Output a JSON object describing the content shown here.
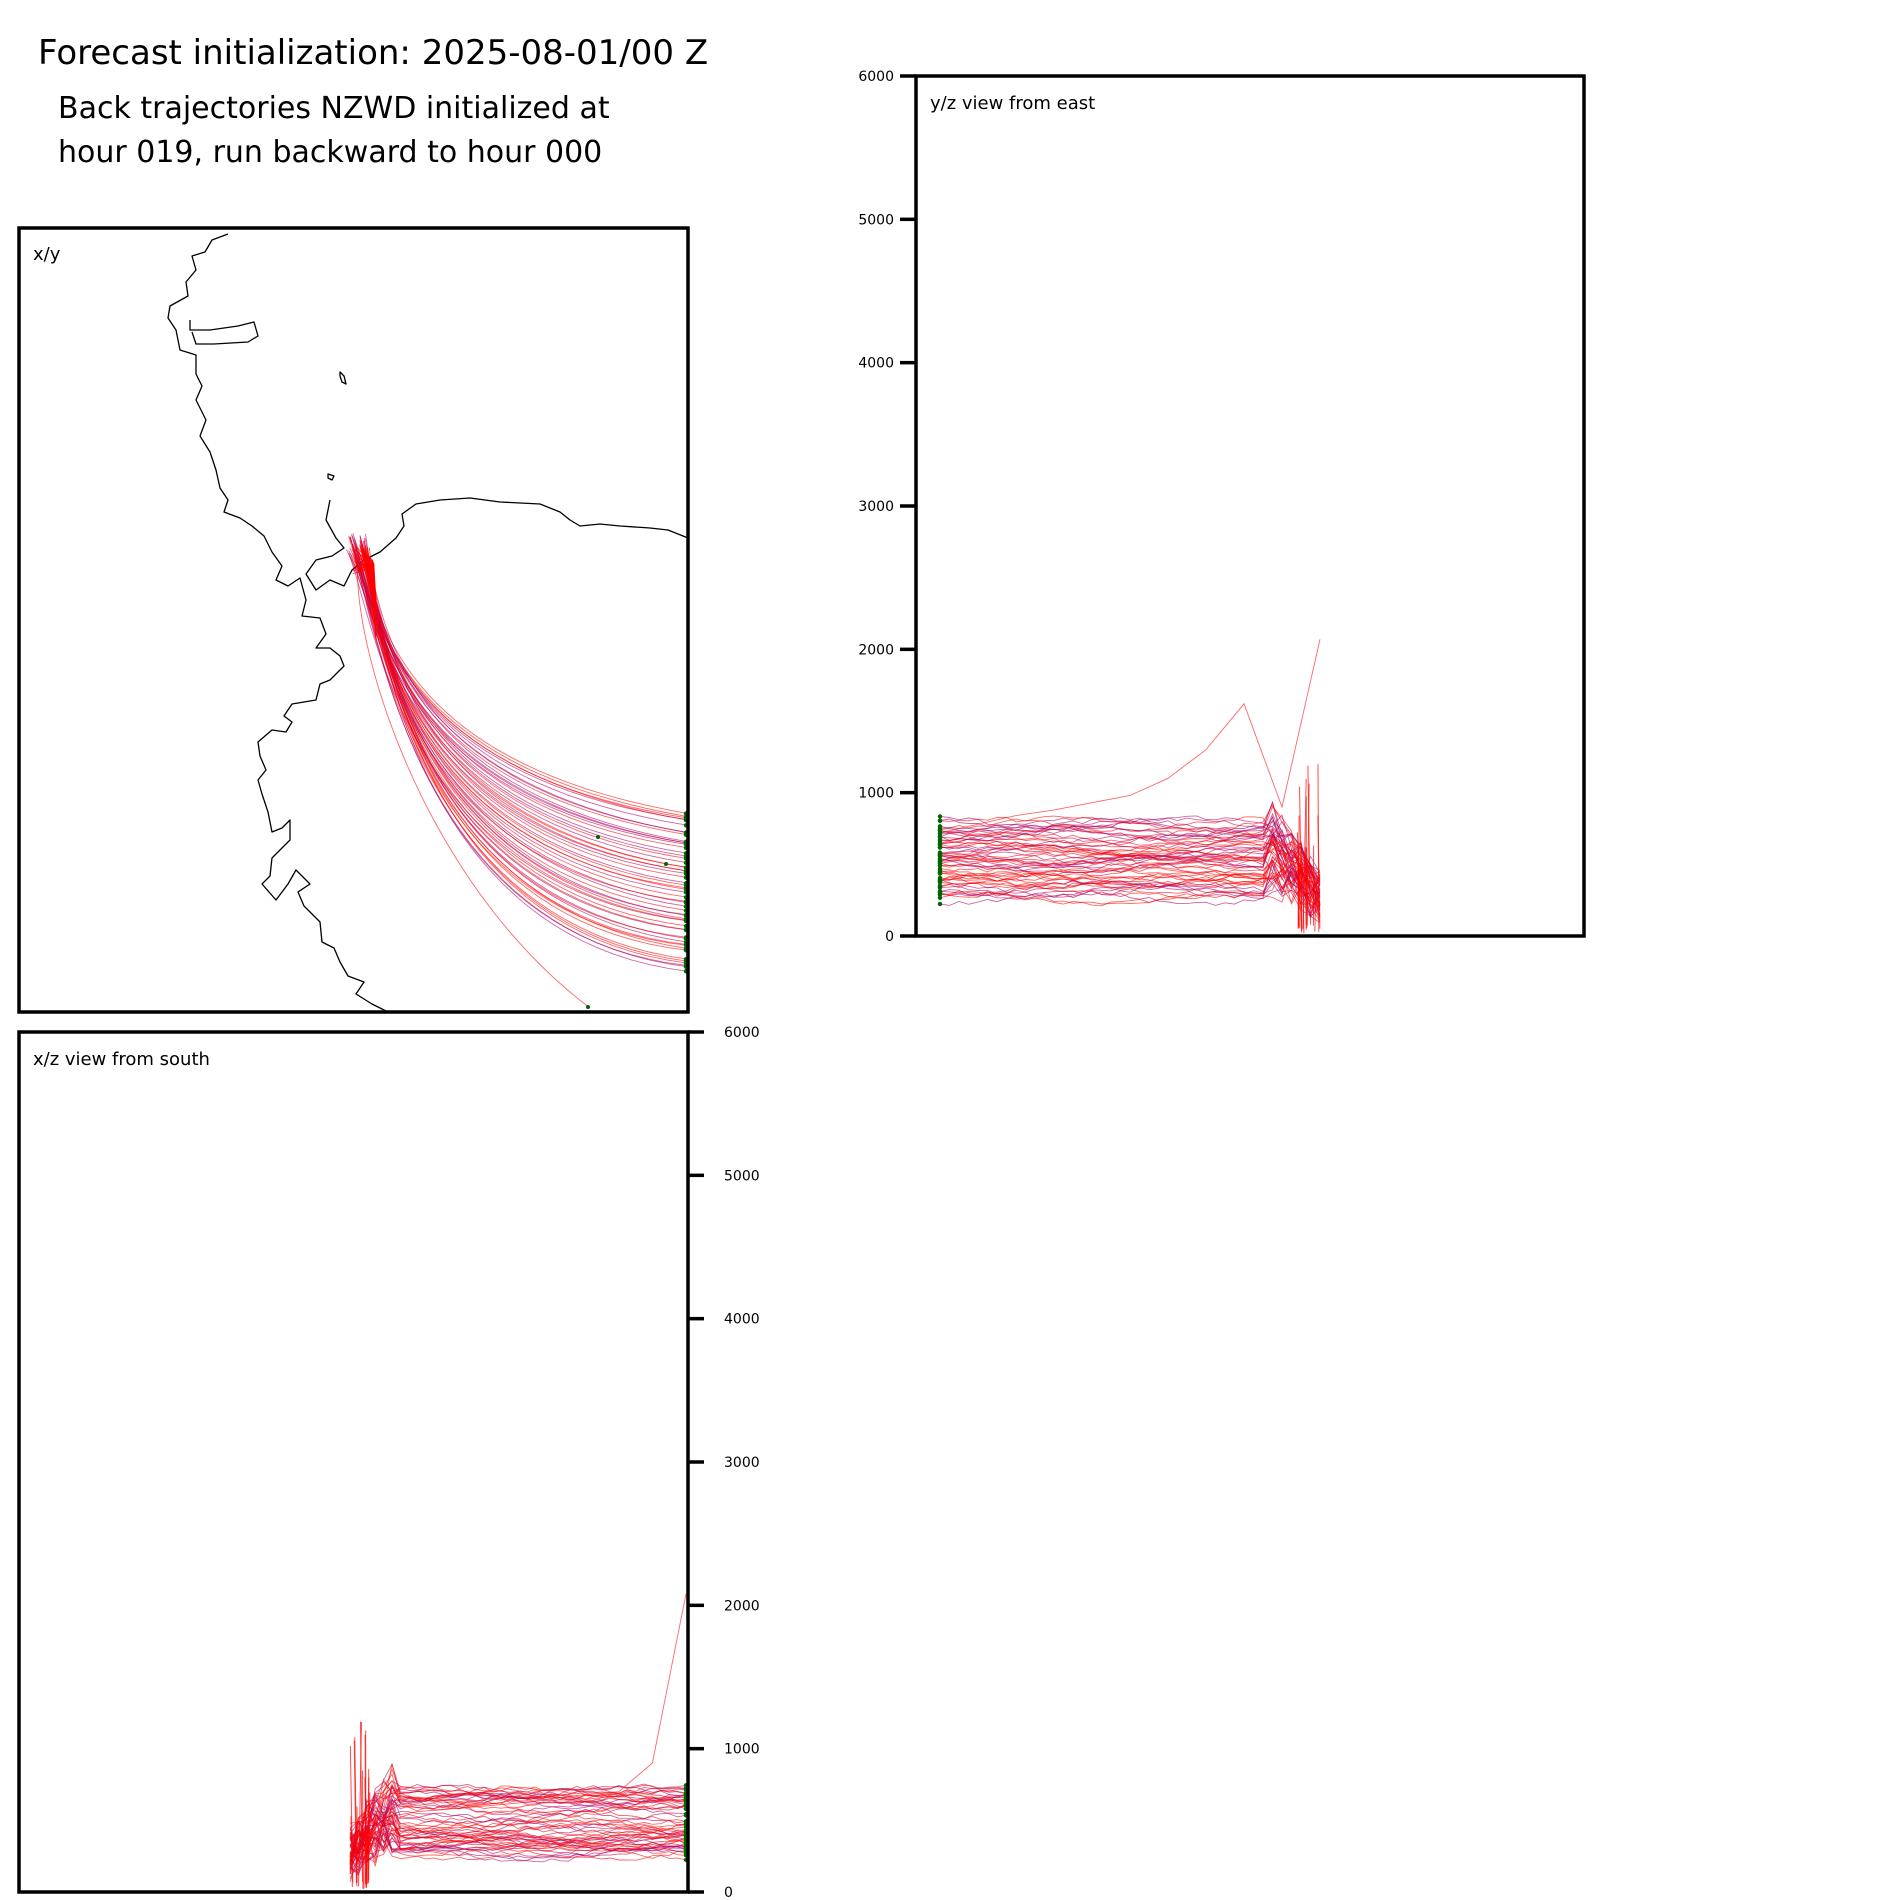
{
  "figure": {
    "title": "Forecast initialization: 2025-08-01/00 Z",
    "subtitle_lines": [
      "Back trajectories NZWD initialized at",
      "hour 019, run backward to hour 000"
    ]
  },
  "colors": {
    "trajectory_red": "#ff0000",
    "trajectory_purple": "#b0005f",
    "endpoint_green": "#006400",
    "coastline": "#000000",
    "frame": "#000000"
  },
  "chart_data": [
    {
      "type": "line",
      "panel": "x/y",
      "title": "x/y",
      "description_role": "map view of back trajectories over coastline",
      "release_point": "NZWD",
      "n_trajectories": 55,
      "grid": false,
      "ticks": false
    },
    {
      "type": "line",
      "panel": "y/z",
      "title": "y/z view from east",
      "ylim": [
        0,
        6000
      ],
      "yticks": [
        0,
        1000,
        2000,
        3000,
        4000,
        5000,
        6000
      ],
      "ytick_side": "left",
      "grid": false,
      "bulk_height_m": 500,
      "bulk_height_range_m": [
        250,
        800
      ],
      "max_height_m": 2070,
      "outlier_peak_m": 1620,
      "series": [
        {
          "name": "",
          "x": [
            0,
            1,
            2,
            3,
            4,
            5,
            6,
            7,
            8,
            9,
            10
          ],
          "values": [
            720,
            780,
            840,
            880,
            930,
            980,
            1100,
            1300,
            1620,
            900,
            2070
          ]
        }
      ]
    },
    {
      "type": "line",
      "panel": "x/z",
      "title": "x/z view from south",
      "ylim": [
        0,
        6000
      ],
      "yticks": [
        0,
        1000,
        2000,
        3000,
        4000,
        5000,
        6000
      ],
      "ytick_side": "right",
      "grid": false,
      "bulk_height_m": 450,
      "bulk_height_range_m": [
        250,
        700
      ],
      "max_height_m": 2080,
      "series": [
        {
          "name": "",
          "x": [
            0,
            1,
            2,
            3,
            4,
            5,
            6,
            7,
            8,
            9,
            10
          ],
          "values": [
            2080,
            900,
            700,
            680,
            650,
            620,
            600,
            580,
            560,
            520,
            480
          ]
        }
      ]
    }
  ]
}
